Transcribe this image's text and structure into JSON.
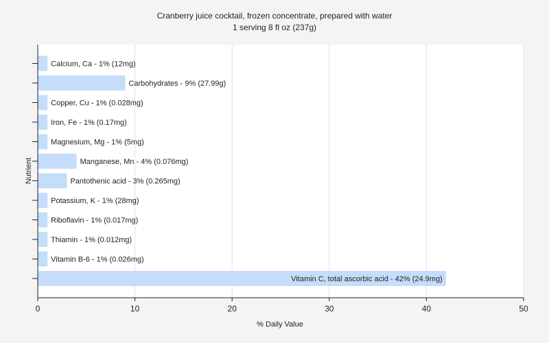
{
  "chart_data": {
    "type": "bar",
    "orientation": "horizontal",
    "title": "Cranberry juice cocktail, frozen concentrate, prepared with water",
    "subtitle": "1 serving 8 fl oz (237g)",
    "xlabel": "% Daily Value",
    "ylabel": "Nutrient",
    "xlim": [
      0,
      50
    ],
    "xticks": [
      0,
      10,
      20,
      30,
      40,
      50
    ],
    "grid": true,
    "bar_color": "#c5dcfb",
    "categories": [
      "Calcium, Ca",
      "Carbohydrates",
      "Copper, Cu",
      "Iron, Fe",
      "Magnesium, Mg",
      "Manganese, Mn",
      "Pantothenic acid",
      "Potassium, K",
      "Riboflavin",
      "Thiamin",
      "Vitamin B-6",
      "Vitamin C, total ascorbic acid"
    ],
    "values": [
      1,
      9,
      1,
      1,
      1,
      4,
      3,
      1,
      1,
      1,
      1,
      42
    ],
    "labels": [
      "Calcium, Ca - 1% (12mg)",
      "Carbohydrates - 9% (27.99g)",
      "Copper, Cu - 1% (0.028mg)",
      "Iron, Fe - 1% (0.17mg)",
      "Magnesium, Mg - 1% (5mg)",
      "Manganese, Mn - 4% (0.076mg)",
      "Pantothenic acid - 3% (0.265mg)",
      "Potassium, K - 1% (28mg)",
      "Riboflavin - 1% (0.017mg)",
      "Thiamin - 1% (0.012mg)",
      "Vitamin B-6 - 1% (0.026mg)",
      "Vitamin C, total ascorbic acid - 42% (24.9mg)"
    ]
  }
}
